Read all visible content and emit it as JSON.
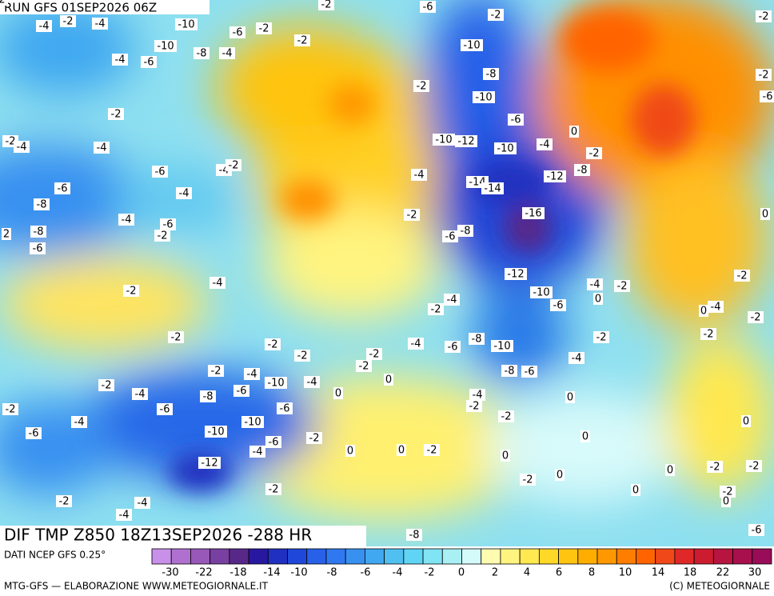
{
  "header": {
    "run": "RUN GFS 01SEP2026 06Z"
  },
  "footer": {
    "field": "DIF TMP Z850 18Z13SEP2026 -288 HR",
    "source": "DATI NCEP GFS 0.25°",
    "credit": "MTG-GFS — ELABORAZIONE WWW.METEOGIORNALE.IT",
    "copyright": "(C) METEOGIORNALE"
  },
  "legend": {
    "colors": [
      "#c890e8",
      "#b070d0",
      "#9858b8",
      "#7840a0",
      "#582888",
      "#2818a0",
      "#2030c0",
      "#2048d8",
      "#2860e8",
      "#3078f0",
      "#3890f0",
      "#40a8f0",
      "#50c0f0",
      "#60d4f4",
      "#80e4f4",
      "#a8f0f4",
      "#d4fafa",
      "#fffbb0",
      "#fff480",
      "#ffe850",
      "#ffd828",
      "#ffc410",
      "#ffae00",
      "#ff9800",
      "#ff7e00",
      "#ff6400",
      "#f04818",
      "#e02828",
      "#cc1c30",
      "#b81440",
      "#a8104c",
      "#980c58"
    ],
    "labels": [
      "-30",
      "-22",
      "-18",
      "-14",
      "-10",
      "-8",
      "-6",
      "-4",
      "-2",
      "0",
      "2",
      "4",
      "6",
      "8",
      "10",
      "14",
      "18",
      "22",
      "30"
    ]
  },
  "map": {
    "contour_labels": [
      "-4",
      "-2",
      "-4",
      "-10",
      "-6",
      "-2",
      "-2",
      "-10",
      "-8",
      "-4",
      "-4",
      "-6",
      "-2",
      "-6",
      "-2",
      "-2",
      "-10",
      "-8",
      "-2",
      "-10",
      "-2",
      "-6",
      "-2",
      "-6",
      "0",
      "-2",
      "-4",
      "-4",
      "-10",
      "-12",
      "-10",
      "-4",
      "-2",
      "-6",
      "-4",
      "-2",
      "-4",
      "-8",
      "-12",
      "-6",
      "-4",
      "-14",
      "-14",
      "-8",
      "-4",
      "-6",
      "-2",
      "-16",
      "0",
      "2",
      "-8",
      "-2",
      "-6",
      "-8",
      "-6",
      "-12",
      "-4",
      "-4",
      "-2",
      "-2",
      "-2",
      "-10",
      "-6",
      "0",
      "-4",
      "-2",
      "0",
      "-4",
      "-2",
      "-2",
      "-2",
      "-2",
      "-8",
      "-2",
      "-4",
      "-6",
      "-10",
      "-2",
      "-2",
      "-2",
      "-4",
      "-2",
      "-4",
      "-8",
      "-6",
      "0",
      "-10",
      "-4",
      "-2",
      "-4",
      "-8",
      "-6",
      "0",
      "-4",
      "0",
      "-2",
      "-2",
      "-6",
      "-6",
      "-2",
      "0",
      "-4",
      "-10",
      "-6",
      "-10",
      "-6",
      "-2",
      "0",
      "-4",
      "0",
      "0",
      "-2",
      "0",
      "-12",
      "0",
      "-2",
      "-2",
      "0",
      "-2",
      "-2",
      "0",
      "-2",
      "0",
      "-2",
      "-4",
      "-4",
      "-8",
      "-6",
      "-2",
      "-2"
    ]
  }
}
